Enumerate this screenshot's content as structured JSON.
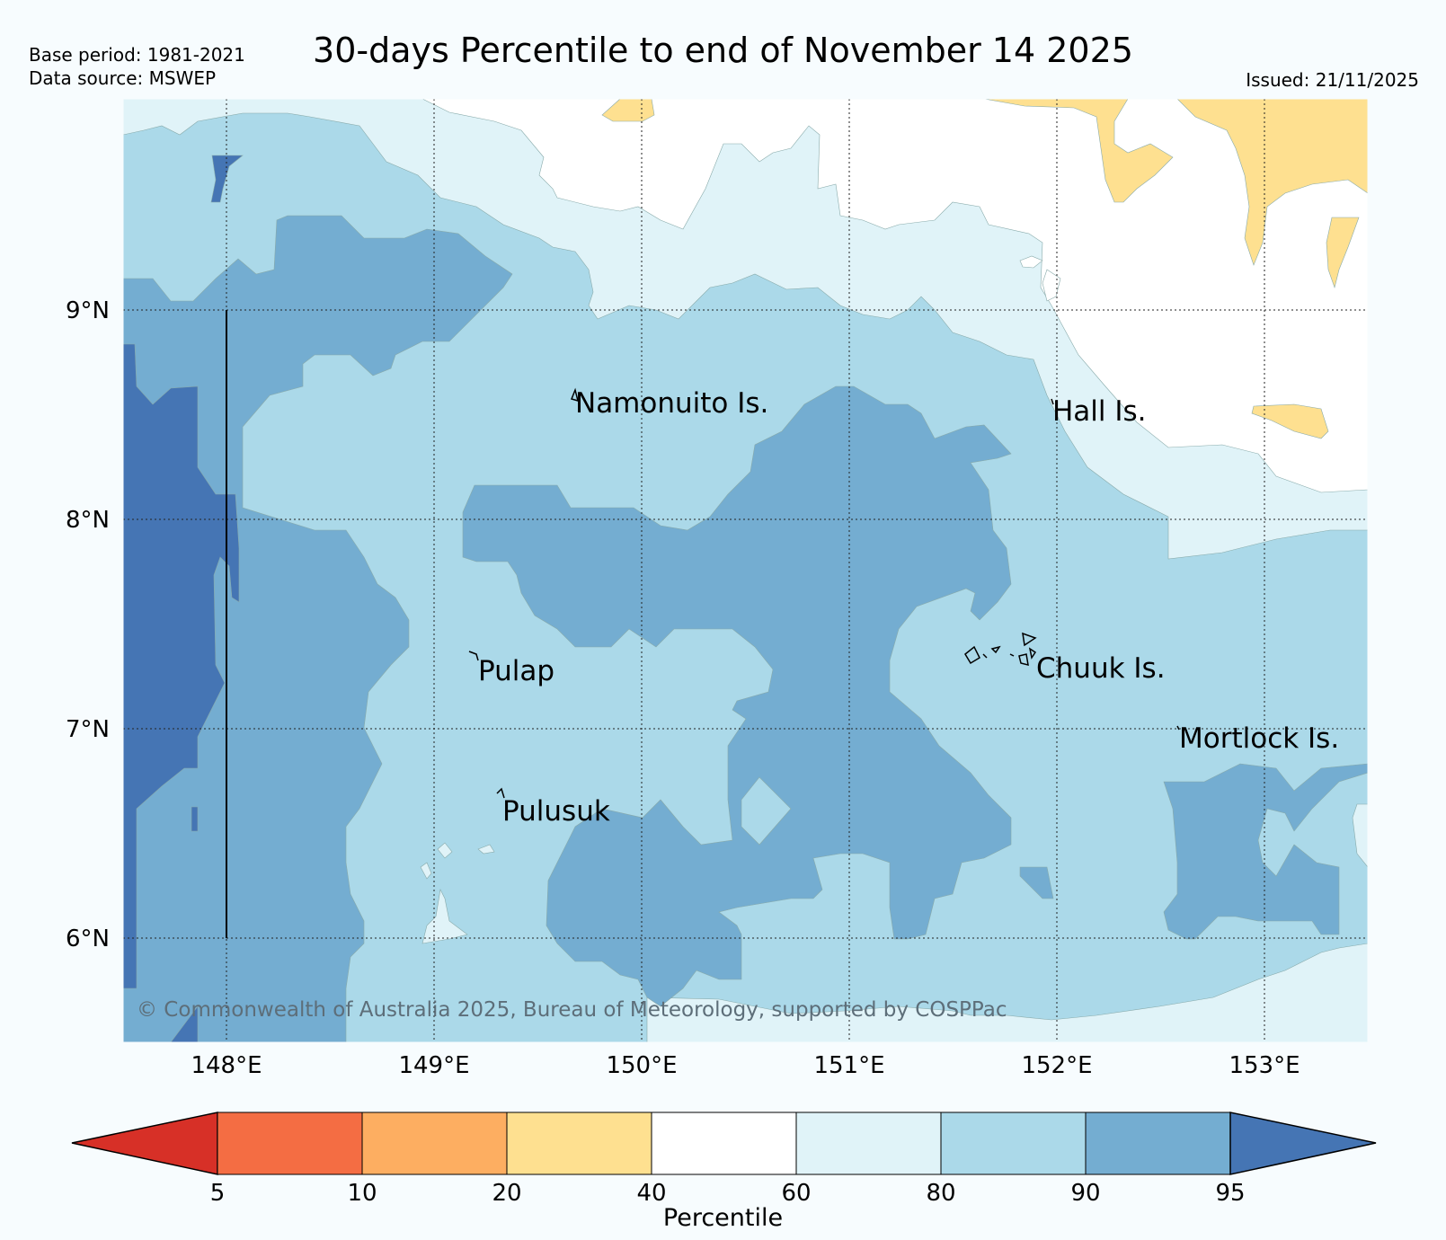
{
  "header": {
    "title": "30-days Percentile to end of November 14 2025",
    "base_period": "Base period: 1981-2021",
    "data_source": "Data source: MSWEP",
    "issued": "Issued: 21/11/2025"
  },
  "map": {
    "lon_ticks": [
      "148°E",
      "149°E",
      "150°E",
      "151°E",
      "152°E",
      "153°E"
    ],
    "lat_ticks": [
      "9°N",
      "8°N",
      "7°N",
      "6°N"
    ],
    "places": {
      "namonuito": "Namonuito Is.",
      "hall": "Hall Is.",
      "pulap": "Pulap",
      "chuuk": "Chuuk Is.",
      "mortlock": "Mortlock Is.",
      "pulusuk": "Pulusuk"
    },
    "copyright": "© Commonwealth of Australia 2025, Bureau of Meteorology, supported by COSPPac"
  },
  "colorbar": {
    "title": "Percentile",
    "ticks": [
      "5",
      "10",
      "20",
      "40",
      "60",
      "80",
      "90",
      "95"
    ],
    "colors": {
      "below_5": "#d73027",
      "p5_10": "#f46d43",
      "p10_20": "#fdae61",
      "p20_40": "#fee090",
      "p40_60": "#ffffff",
      "p60_80": "#e0f3f8",
      "p80_90": "#abd9e9",
      "p90_95": "#74add1",
      "above_95": "#4575b4"
    }
  }
}
